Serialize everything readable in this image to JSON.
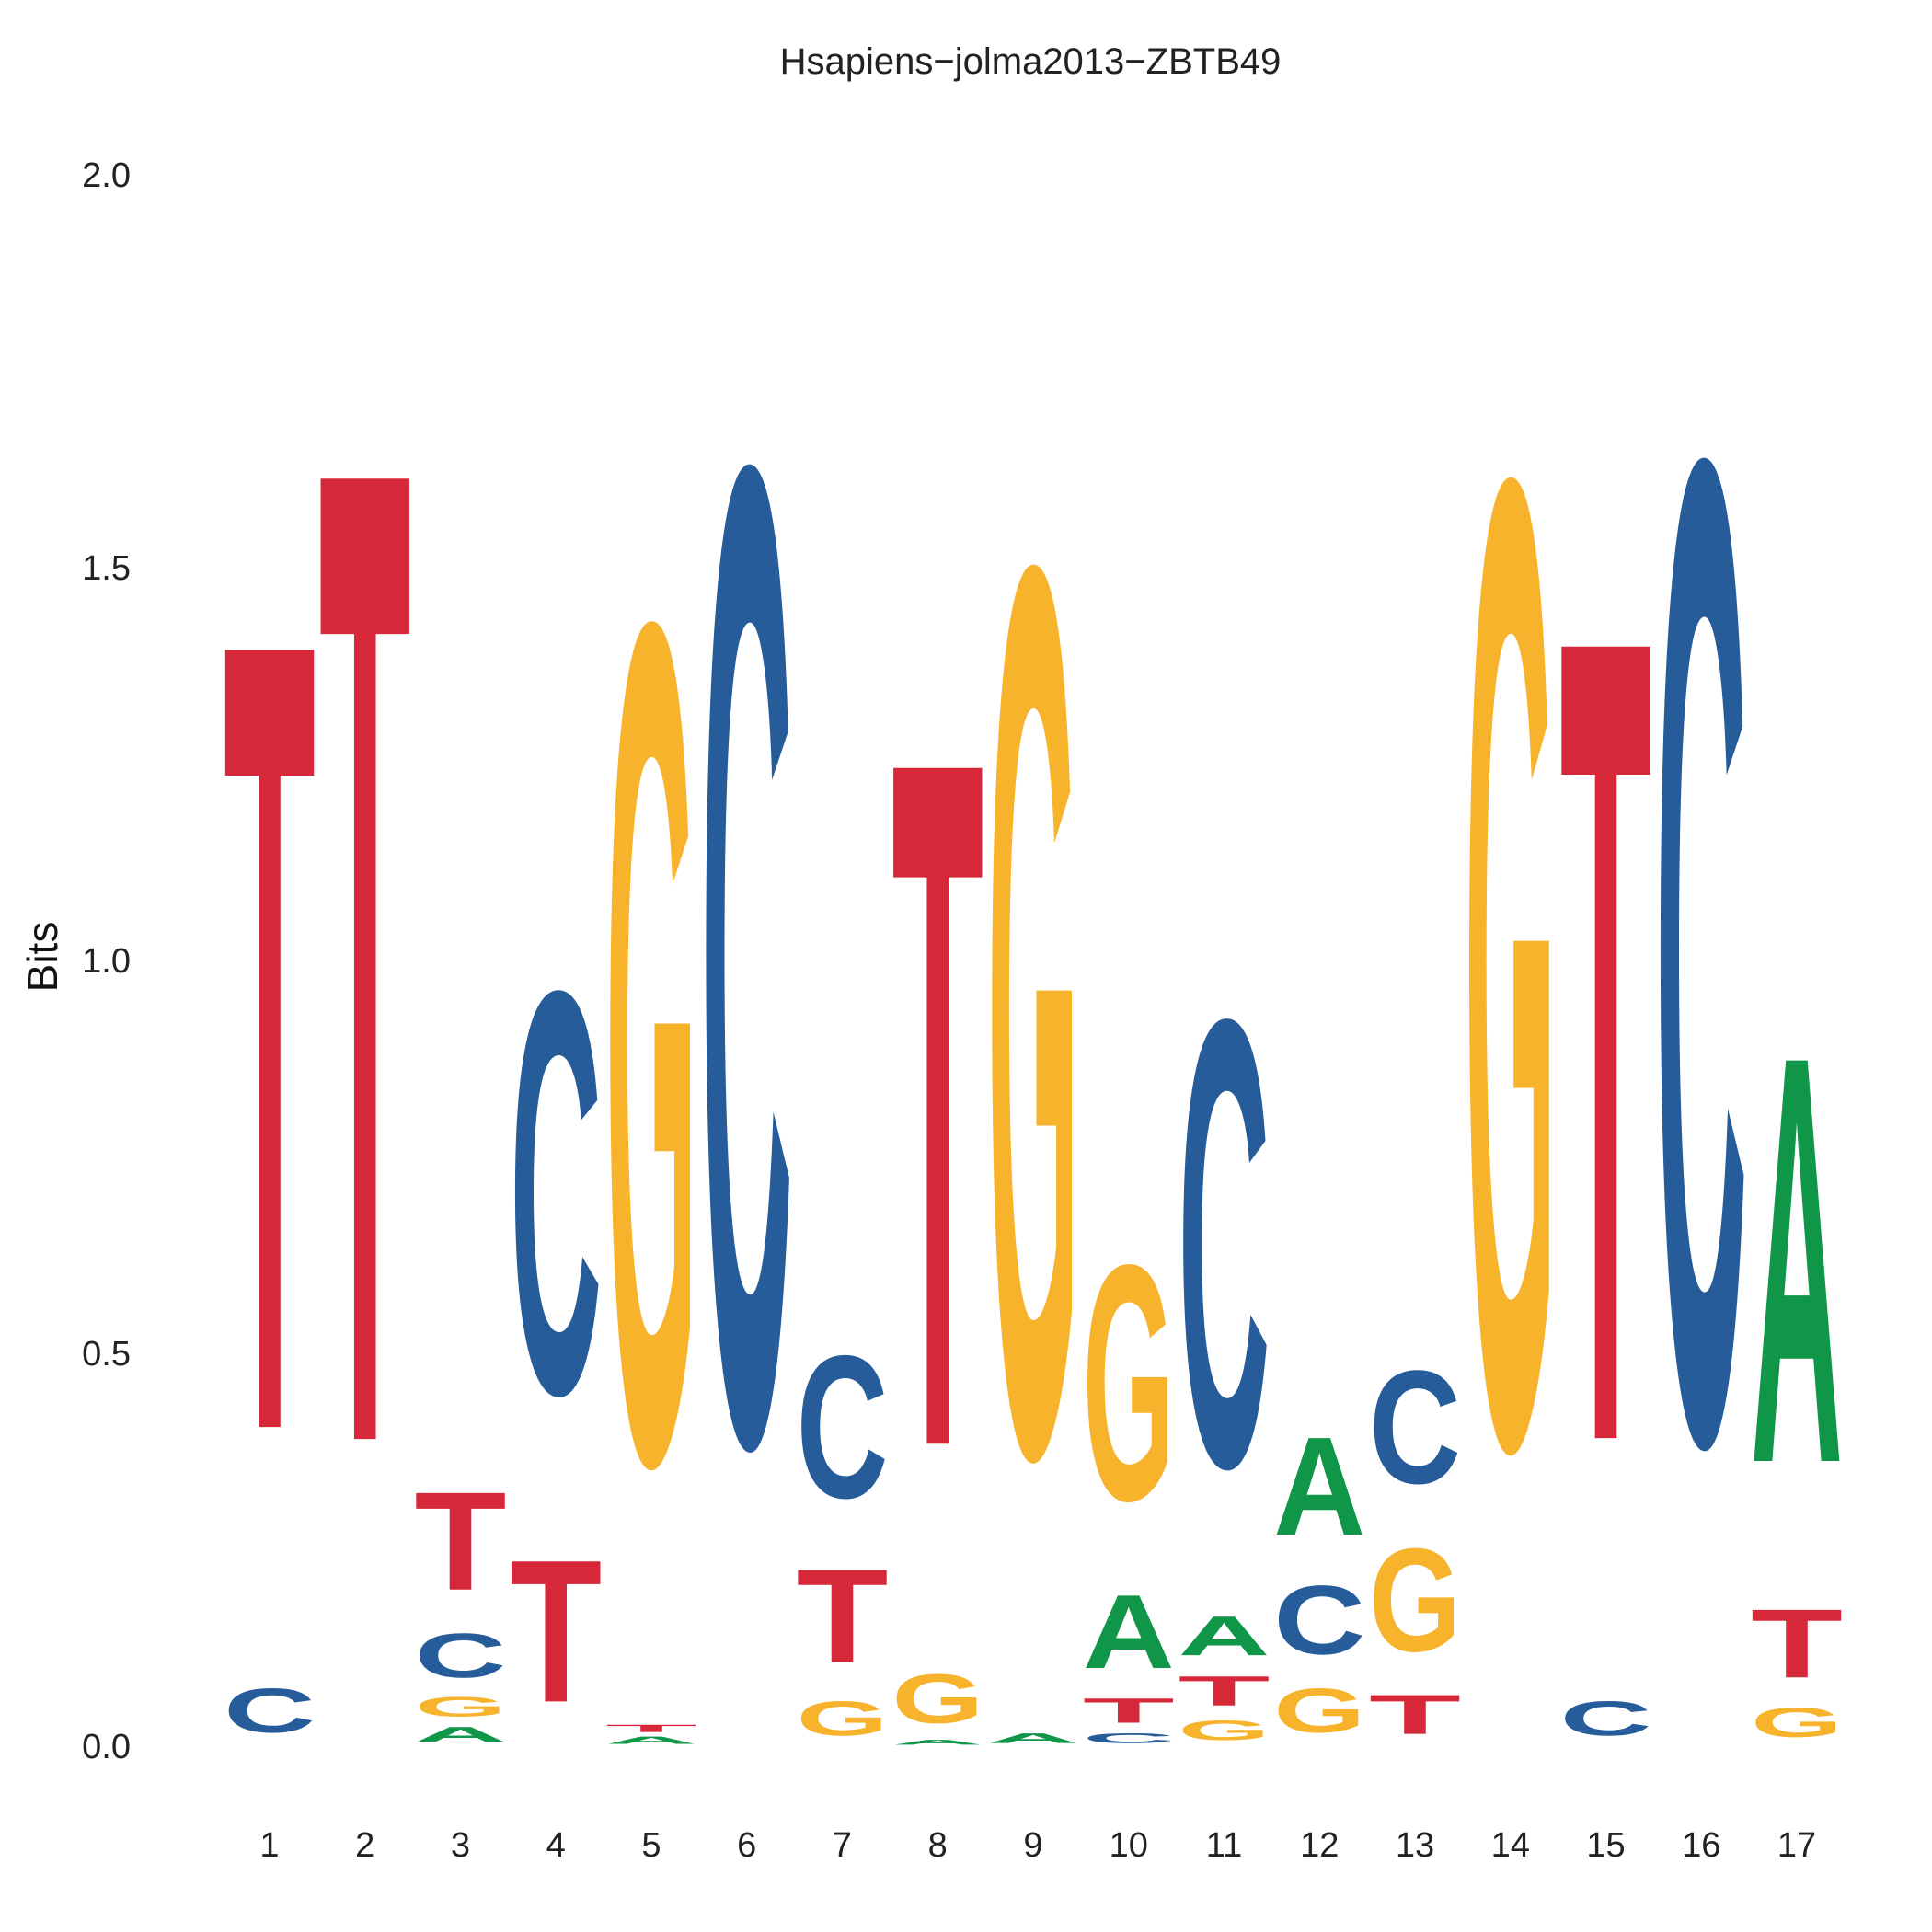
{
  "chart_data": {
    "type": "sequence-logo",
    "title": "Hsapiens−jolma2013−ZBTB49",
    "ylabel": "Bits",
    "xlabel": "",
    "ylim": [
      0,
      2
    ],
    "yticks": [
      "0.0",
      "0.5",
      "1.0",
      "1.5",
      "2.0"
    ],
    "ytick_values": [
      0,
      0.5,
      1,
      1.5,
      2
    ],
    "grid": false,
    "colors": {
      "A": "#109648",
      "C": "#255C99",
      "G": "#F7B32B",
      "T": "#D62839"
    },
    "positions": [
      {
        "pos": "1",
        "stack": [
          {
            "letter": "C",
            "bits": 0.09
          },
          {
            "letter": "T",
            "bits": 1.61
          }
        ]
      },
      {
        "pos": "2",
        "stack": [
          {
            "letter": "T",
            "bits": 1.99
          }
        ]
      },
      {
        "pos": "3",
        "stack": [
          {
            "letter": "A",
            "bits": 0.03
          },
          {
            "letter": "G",
            "bits": 0.04
          },
          {
            "letter": "C",
            "bits": 0.09
          },
          {
            "letter": "T",
            "bits": 0.2
          }
        ]
      },
      {
        "pos": "4",
        "stack": [
          {
            "letter": "T",
            "bits": 0.29
          },
          {
            "letter": "C",
            "bits": 0.82
          }
        ]
      },
      {
        "pos": "5",
        "stack": [
          {
            "letter": "A",
            "bits": 0.015
          },
          {
            "letter": "T",
            "bits": 0.015
          },
          {
            "letter": "G",
            "bits": 1.71
          }
        ]
      },
      {
        "pos": "6",
        "stack": [
          {
            "letter": "C",
            "bits": 1.99
          }
        ]
      },
      {
        "pos": "7",
        "stack": [
          {
            "letter": "G",
            "bits": 0.07
          },
          {
            "letter": "T",
            "bits": 0.19
          },
          {
            "letter": "C",
            "bits": 0.29
          }
        ]
      },
      {
        "pos": "8",
        "stack": [
          {
            "letter": "A",
            "bits": 0.01
          },
          {
            "letter": "G",
            "bits": 0.1
          },
          {
            "letter": "T",
            "bits": 1.4
          }
        ]
      },
      {
        "pos": "9",
        "stack": [
          {
            "letter": "A",
            "bits": 0.02
          },
          {
            "letter": "G",
            "bits": 1.81
          }
        ]
      },
      {
        "pos": "10",
        "stack": [
          {
            "letter": "C",
            "bits": 0.02
          },
          {
            "letter": "T",
            "bits": 0.05
          },
          {
            "letter": "A",
            "bits": 0.15
          },
          {
            "letter": "G",
            "bits": 0.48
          }
        ]
      },
      {
        "pos": "11",
        "stack": [
          {
            "letter": "G",
            "bits": 0.04
          },
          {
            "letter": "T",
            "bits": 0.06
          },
          {
            "letter": "A",
            "bits": 0.08
          },
          {
            "letter": "C",
            "bits": 0.91
          }
        ]
      },
      {
        "pos": "12",
        "stack": [
          {
            "letter": "G",
            "bits": 0.09
          },
          {
            "letter": "C",
            "bits": 0.14
          },
          {
            "letter": "A",
            "bits": 0.2
          }
        ]
      },
      {
        "pos": "13",
        "stack": [
          {
            "letter": "T",
            "bits": 0.08
          },
          {
            "letter": "G",
            "bits": 0.21
          },
          {
            "letter": "C",
            "bits": 0.23
          }
        ]
      },
      {
        "pos": "14",
        "stack": [
          {
            "letter": "G",
            "bits": 1.97
          }
        ]
      },
      {
        "pos": "15",
        "stack": [
          {
            "letter": "C",
            "bits": 0.07
          },
          {
            "letter": "T",
            "bits": 1.64
          }
        ]
      },
      {
        "pos": "16",
        "stack": [
          {
            "letter": "C",
            "bits": 2.0
          }
        ]
      },
      {
        "pos": "17",
        "stack": [
          {
            "letter": "G",
            "bits": 0.06
          },
          {
            "letter": "T",
            "bits": 0.14
          },
          {
            "letter": "A",
            "bits": 0.83
          }
        ]
      }
    ]
  }
}
